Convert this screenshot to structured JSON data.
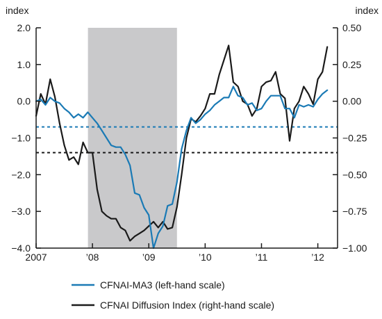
{
  "chart_data": {
    "type": "line",
    "left_axis": {
      "label": "index",
      "range": [
        -4.0,
        2.0
      ],
      "ticks": [
        2.0,
        1.0,
        0.0,
        -1.0,
        -2.0,
        -3.0,
        -4.0
      ],
      "tick_labels": [
        "2.0",
        "1.0",
        "0.0",
        "−1.0",
        "−2.0",
        "−3.0",
        "−4.0"
      ]
    },
    "right_axis": {
      "label": "index",
      "range": [
        -1.0,
        0.5
      ],
      "ticks": [
        0.5,
        0.25,
        0.0,
        -0.25,
        -0.5,
        -0.75,
        -1.0
      ],
      "tick_labels": [
        "0.50",
        "0.25",
        "0.00",
        "−0.25",
        "−0.50",
        "−0.75",
        "−1.00"
      ]
    },
    "x_axis": {
      "range": [
        2007.0,
        2012.35
      ],
      "ticks": [
        2007,
        2008,
        2009,
        2010,
        2011,
        2012
      ],
      "tick_labels": [
        "2007",
        "’08",
        "’09",
        "’10",
        "’11",
        "’12"
      ]
    },
    "shaded_period": {
      "start": 2007.92,
      "end": 2009.5
    },
    "reference_lines": [
      {
        "value": -0.7,
        "axis": "left",
        "style": "dashed",
        "color": "#1a7ab5"
      },
      {
        "value": -0.35,
        "axis": "right",
        "style": "dashed",
        "color": "#1a1a1a"
      }
    ],
    "series": [
      {
        "name": "CFNAI-MA3 (left-hand scale)",
        "axis": "left",
        "color": "#1a7ab5",
        "points": [
          [
            2007.0,
            0.0
          ],
          [
            2007.083,
            0.05
          ],
          [
            2007.167,
            -0.1
          ],
          [
            2007.25,
            0.1
          ],
          [
            2007.333,
            0.0
          ],
          [
            2007.417,
            -0.05
          ],
          [
            2007.5,
            -0.2
          ],
          [
            2007.583,
            -0.3
          ],
          [
            2007.667,
            -0.45
          ],
          [
            2007.75,
            -0.35
          ],
          [
            2007.833,
            -0.45
          ],
          [
            2007.917,
            -0.3
          ],
          [
            2008.0,
            -0.45
          ],
          [
            2008.083,
            -0.6
          ],
          [
            2008.167,
            -0.8
          ],
          [
            2008.25,
            -1.0
          ],
          [
            2008.333,
            -1.2
          ],
          [
            2008.417,
            -1.25
          ],
          [
            2008.5,
            -1.25
          ],
          [
            2008.583,
            -1.45
          ],
          [
            2008.667,
            -1.75
          ],
          [
            2008.75,
            -2.5
          ],
          [
            2008.833,
            -2.55
          ],
          [
            2008.917,
            -2.9
          ],
          [
            2009.0,
            -3.1
          ],
          [
            2009.083,
            -4.0
          ],
          [
            2009.167,
            -3.6
          ],
          [
            2009.25,
            -3.4
          ],
          [
            2009.333,
            -2.85
          ],
          [
            2009.417,
            -2.8
          ],
          [
            2009.5,
            -2.2
          ],
          [
            2009.583,
            -1.3
          ],
          [
            2009.667,
            -0.8
          ],
          [
            2009.75,
            -0.45
          ],
          [
            2009.833,
            -0.6
          ],
          [
            2009.917,
            -0.5
          ],
          [
            2010.0,
            -0.35
          ],
          [
            2010.083,
            -0.25
          ],
          [
            2010.167,
            -0.1
          ],
          [
            2010.25,
            0.0
          ],
          [
            2010.333,
            0.1
          ],
          [
            2010.417,
            0.1
          ],
          [
            2010.5,
            0.4
          ],
          [
            2010.583,
            0.15
          ],
          [
            2010.667,
            0.1
          ],
          [
            2010.75,
            -0.1
          ],
          [
            2010.833,
            -0.05
          ],
          [
            2010.917,
            -0.25
          ],
          [
            2011.0,
            -0.2
          ],
          [
            2011.083,
            0.0
          ],
          [
            2011.167,
            0.15
          ],
          [
            2011.25,
            0.15
          ],
          [
            2011.333,
            0.15
          ],
          [
            2011.417,
            -0.2
          ],
          [
            2011.5,
            -0.2
          ],
          [
            2011.583,
            -0.45
          ],
          [
            2011.667,
            -0.1
          ],
          [
            2011.75,
            -0.15
          ],
          [
            2011.833,
            -0.1
          ],
          [
            2011.917,
            -0.15
          ],
          [
            2012.0,
            0.05
          ],
          [
            2012.083,
            0.2
          ],
          [
            2012.167,
            0.3
          ]
        ]
      },
      {
        "name": "CFNAI Diffusion Index (right-hand scale)",
        "axis": "right",
        "color": "#1a1a1a",
        "points": [
          [
            2007.0,
            -0.1
          ],
          [
            2007.083,
            0.05
          ],
          [
            2007.167,
            -0.02
          ],
          [
            2007.25,
            0.15
          ],
          [
            2007.333,
            0.03
          ],
          [
            2007.417,
            -0.15
          ],
          [
            2007.5,
            -0.3
          ],
          [
            2007.583,
            -0.4
          ],
          [
            2007.667,
            -0.38
          ],
          [
            2007.75,
            -0.43
          ],
          [
            2007.833,
            -0.28
          ],
          [
            2007.917,
            -0.35
          ],
          [
            2008.0,
            -0.35
          ],
          [
            2008.083,
            -0.6
          ],
          [
            2008.167,
            -0.75
          ],
          [
            2008.25,
            -0.78
          ],
          [
            2008.333,
            -0.8
          ],
          [
            2008.417,
            -0.8
          ],
          [
            2008.5,
            -0.86
          ],
          [
            2008.583,
            -0.88
          ],
          [
            2008.667,
            -0.95
          ],
          [
            2008.75,
            -0.92
          ],
          [
            2008.833,
            -0.9
          ],
          [
            2008.917,
            -0.88
          ],
          [
            2009.0,
            -0.85
          ],
          [
            2009.083,
            -0.82
          ],
          [
            2009.167,
            -0.86
          ],
          [
            2009.25,
            -0.82
          ],
          [
            2009.333,
            -0.87
          ],
          [
            2009.417,
            -0.86
          ],
          [
            2009.5,
            -0.72
          ],
          [
            2009.583,
            -0.5
          ],
          [
            2009.667,
            -0.25
          ],
          [
            2009.75,
            -0.12
          ],
          [
            2009.833,
            -0.14
          ],
          [
            2009.917,
            -0.1
          ],
          [
            2010.0,
            -0.05
          ],
          [
            2010.083,
            0.05
          ],
          [
            2010.167,
            0.05
          ],
          [
            2010.25,
            0.18
          ],
          [
            2010.333,
            0.28
          ],
          [
            2010.417,
            0.38
          ],
          [
            2010.5,
            0.13
          ],
          [
            2010.583,
            0.1
          ],
          [
            2010.667,
            0.0
          ],
          [
            2010.75,
            -0.02
          ],
          [
            2010.833,
            -0.1
          ],
          [
            2010.917,
            -0.05
          ],
          [
            2011.0,
            0.1
          ],
          [
            2011.083,
            0.13
          ],
          [
            2011.167,
            0.14
          ],
          [
            2011.25,
            0.2
          ],
          [
            2011.333,
            0.05
          ],
          [
            2011.417,
            0.02
          ],
          [
            2011.5,
            -0.27
          ],
          [
            2011.583,
            -0.05
          ],
          [
            2011.667,
            0.0
          ],
          [
            2011.75,
            0.1
          ],
          [
            2011.833,
            0.05
          ],
          [
            2011.917,
            -0.02
          ],
          [
            2012.0,
            0.15
          ],
          [
            2012.083,
            0.2
          ],
          [
            2012.167,
            0.37
          ]
        ]
      }
    ],
    "legend": {
      "placement": "bottom",
      "entries": [
        {
          "label": "CFNAI-MA3 (left-hand scale)",
          "color": "#1a7ab5"
        },
        {
          "label": "CFNAI Diffusion Index (right-hand scale)",
          "color": "#1a1a1a"
        }
      ]
    },
    "grid": false,
    "colors": {
      "shade": "#c9c9cb",
      "axis": "#1a1a1a"
    }
  }
}
